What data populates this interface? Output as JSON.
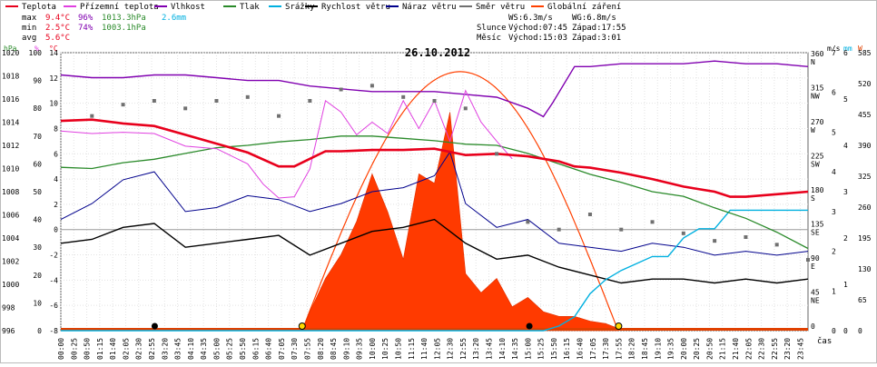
{
  "legend": [
    {
      "label": "Teplota",
      "color": "#e8001c"
    },
    {
      "label": "Přízemní teplota",
      "color": "#e040e0"
    },
    {
      "label": "Vlhkost",
      "color": "#8000b0"
    },
    {
      "label": "Tlak",
      "color": "#2a8a2a"
    },
    {
      "label": "Srážky",
      "color": "#00b0e0"
    },
    {
      "label": "Rychlost větru",
      "color": "#000000"
    },
    {
      "label": "Náraz větru",
      "color": "#00008c"
    },
    {
      "label": "Směr větru",
      "color": "#707070"
    },
    {
      "label": "Globální záření",
      "color": "#ff4000"
    }
  ],
  "stats": {
    "max_label": "max",
    "max_temp": "9.4°C",
    "max_hum": "96%",
    "max_press": "1013.3hPa",
    "max_rain": "2.6mm",
    "min_label": "min",
    "min_temp": "2.5°C",
    "min_hum": "74%",
    "min_press": "1003.1hPa",
    "avg_label": "avg",
    "avg_temp": "5.6°C"
  },
  "wind": {
    "ws": "WS:6.3m/s",
    "wg": "WG:6.8m/s"
  },
  "sun": {
    "label": "Slunce",
    "rise": "Východ:07:45",
    "set": "Západ:17:55"
  },
  "moon": {
    "label": "Měsíc",
    "rise": "Východ:15:03",
    "set": "Západ:3:01"
  },
  "date": "26.10.2012",
  "x_axis_label": "čas",
  "axis_units": {
    "hpa": "hPa",
    "pct": "%",
    "celsius": "°C",
    "ms": "m/s",
    "mm": "mm",
    "w": "W"
  },
  "chart_data": {
    "type": "line",
    "title": "26.10.2012",
    "xlabel": "čas",
    "x_ticks": [
      "00:00",
      "00:25",
      "00:50",
      "01:15",
      "01:40",
      "02:05",
      "02:30",
      "02:55",
      "03:20",
      "03:45",
      "04:10",
      "04:35",
      "05:00",
      "05:25",
      "05:50",
      "06:15",
      "06:40",
      "07:05",
      "07:30",
      "07:55",
      "08:20",
      "08:45",
      "09:10",
      "09:35",
      "10:00",
      "10:25",
      "10:50",
      "11:15",
      "11:40",
      "12:05",
      "12:30",
      "12:55",
      "13:20",
      "13:45",
      "14:10",
      "14:35",
      "15:00",
      "15:25",
      "15:50",
      "16:15",
      "16:40",
      "17:05",
      "17:30",
      "17:55",
      "18:20",
      "18:45",
      "19:10",
      "19:35",
      "20:00",
      "20:25",
      "20:50",
      "21:15",
      "21:40",
      "22:05",
      "22:30",
      "22:55",
      "23:20",
      "23:45"
    ],
    "axes": {
      "pressure_hpa": {
        "ylim": [
          996,
          1020
        ],
        "ticks": [
          "996",
          "998",
          "1000",
          "1002",
          "1004",
          "1006",
          "1008",
          "1010",
          "1012",
          "1014",
          "1016",
          "1018",
          "1020"
        ]
      },
      "humidity_pct": {
        "ylim": [
          0,
          100
        ],
        "ticks": [
          "0",
          "10",
          "20",
          "30",
          "40",
          "50",
          "60",
          "70",
          "80",
          "90",
          "100"
        ]
      },
      "temp_c": {
        "ylim": [
          -8,
          14
        ],
        "ticks": [
          "-8",
          "-6",
          "-4",
          "-2",
          "0",
          "2",
          "4",
          "6",
          "8",
          "10",
          "12",
          "14"
        ]
      },
      "wind_dir": {
        "ticks": [
          "0",
          "45",
          "90",
          "135",
          "180",
          "225",
          "270",
          "315",
          "360"
        ],
        "labels": [
          "",
          "NE",
          "E",
          "SE",
          "S",
          "SW",
          "W",
          "NW",
          "N"
        ]
      },
      "wind_ms": {
        "ylim": [
          0,
          7
        ],
        "ticks": [
          "0",
          "1",
          "2",
          "3",
          "4",
          "5",
          "6",
          "7"
        ]
      },
      "rain_mm": {
        "ylim": [
          0,
          6
        ],
        "ticks": [
          "0",
          "1",
          "2",
          "3",
          "4",
          "5",
          "6"
        ]
      },
      "radiation_w": {
        "ylim": [
          0,
          585
        ],
        "ticks": [
          "0",
          "65",
          "130",
          "195",
          "260",
          "325",
          "390",
          "455",
          "520",
          "585"
        ]
      }
    },
    "series": [
      {
        "name": "Teplota",
        "x": [
          0,
          1,
          2,
          3,
          4,
          5,
          6,
          7,
          7.5,
          8,
          8.5,
          9,
          10,
          11,
          12,
          13,
          14,
          15,
          16,
          16.5,
          17,
          18,
          19,
          20,
          21,
          21.5,
          22,
          23,
          24
        ],
        "values": [
          8.6,
          8.7,
          8.4,
          8.2,
          7.5,
          6.8,
          6.1,
          5.0,
          5.0,
          5.6,
          6.2,
          6.2,
          6.3,
          6.3,
          6.4,
          5.9,
          6.0,
          5.8,
          5.4,
          5.0,
          4.9,
          4.5,
          4.0,
          3.4,
          3.0,
          2.6,
          2.6,
          2.8,
          3.0
        ]
      },
      {
        "name": "Přízemní teplota",
        "x": [
          0,
          1,
          2,
          3,
          4,
          5,
          6,
          6.5,
          7,
          7.5,
          8,
          8.5,
          9,
          9.5,
          10,
          10.5,
          11,
          11.5,
          12,
          12.5,
          13,
          13.5,
          14,
          14.5
        ],
        "values": [
          7.8,
          7.6,
          7.7,
          7.6,
          6.6,
          6.4,
          5.2,
          3.6,
          2.5,
          2.6,
          4.8,
          10.2,
          9.3,
          7.5,
          8.5,
          7.6,
          10.2,
          8.0,
          10.2,
          7.0,
          11.0,
          8.5,
          7.0,
          5.6
        ]
      },
      {
        "name": "Vlhkost",
        "x": [
          0,
          1,
          2,
          3,
          4,
          5,
          6,
          7,
          8,
          9,
          10,
          11,
          12,
          13,
          14,
          15,
          15.5,
          15.8,
          16.5,
          17,
          18,
          19,
          20,
          21,
          22,
          23,
          24
        ],
        "values": [
          92,
          91,
          91,
          92,
          92,
          91,
          90,
          90,
          88,
          87,
          86,
          86,
          86,
          85,
          84,
          80,
          77,
          82,
          95,
          95,
          96,
          96,
          96,
          97,
          96,
          96,
          95
        ]
      },
      {
        "name": "Tlak",
        "x": [
          0,
          1,
          2,
          3,
          4,
          5,
          6,
          7,
          8,
          9,
          10,
          11,
          12,
          13,
          14,
          15,
          16,
          17,
          18,
          19,
          20,
          21,
          22,
          23,
          24
        ],
        "values": [
          1010.1,
          1010.0,
          1010.5,
          1010.8,
          1011.3,
          1011.8,
          1012.0,
          1012.3,
          1012.5,
          1012.8,
          1012.8,
          1012.6,
          1012.4,
          1012.1,
          1012.0,
          1011.3,
          1010.4,
          1009.5,
          1008.8,
          1008.0,
          1007.6,
          1006.6,
          1005.7,
          1004.5,
          1003.1
        ]
      },
      {
        "name": "Srážky",
        "x": [
          0,
          15.5,
          16,
          16.5,
          17,
          17.5,
          18,
          19,
          19.5,
          20,
          20.5,
          21,
          21.5,
          22,
          22.5,
          23,
          24
        ],
        "values": [
          0,
          0,
          0.1,
          0.3,
          0.8,
          1.1,
          1.3,
          1.6,
          1.6,
          2.0,
          2.2,
          2.2,
          2.6,
          2.6,
          2.6,
          2.6,
          2.6
        ]
      },
      {
        "name": "Rychlost větru",
        "x": [
          0,
          1,
          2,
          3,
          4,
          5,
          6,
          7,
          8,
          9,
          10,
          11,
          12,
          13,
          14,
          15,
          16,
          17,
          18,
          19,
          20,
          21,
          22,
          23,
          24
        ],
        "values": [
          2.2,
          2.3,
          2.6,
          2.7,
          2.1,
          2.2,
          2.3,
          2.4,
          1.9,
          2.2,
          2.5,
          2.6,
          2.8,
          2.2,
          1.8,
          1.9,
          1.6,
          1.4,
          1.2,
          1.3,
          1.3,
          1.2,
          1.3,
          1.2,
          1.3
        ]
      },
      {
        "name": "Náraz větru",
        "x": [
          0,
          1,
          2,
          3,
          4,
          5,
          6,
          7,
          8,
          9,
          10,
          11,
          12,
          12.5,
          13,
          14,
          15,
          16,
          17,
          18,
          19,
          20,
          21,
          22,
          23,
          24
        ],
        "values": [
          2.8,
          3.2,
          3.8,
          4.0,
          3.0,
          3.1,
          3.4,
          3.3,
          3.0,
          3.2,
          3.5,
          3.6,
          3.9,
          4.5,
          3.2,
          2.6,
          2.8,
          2.2,
          2.1,
          2.0,
          2.2,
          2.1,
          1.9,
          2.0,
          1.9,
          2.0
        ]
      },
      {
        "name": "Globální záření",
        "x": [
          7.8,
          8,
          8.5,
          9,
          9.5,
          10,
          10.5,
          11,
          11.5,
          12,
          12.5,
          13,
          13.5,
          14,
          14.5,
          15,
          15.5,
          16,
          16.5,
          17,
          17.5,
          17.9
        ],
        "values": [
          5,
          40,
          110,
          160,
          230,
          330,
          250,
          150,
          330,
          310,
          460,
          120,
          80,
          110,
          50,
          70,
          40,
          30,
          30,
          20,
          15,
          5
        ]
      }
    ],
    "clear_sky_radiation": {
      "x": [
        7.75,
        9,
        10.5,
        12.5,
        14.5,
        16,
        17.9
      ],
      "values": [
        0,
        250,
        480,
        540,
        430,
        230,
        0
      ]
    },
    "wind_direction_samples": {
      "x": [
        1,
        2,
        3,
        4,
        5,
        6,
        7,
        8,
        9,
        10,
        11,
        12,
        13,
        14,
        15,
        16,
        17,
        18,
        19,
        20,
        21,
        22,
        23,
        24
      ],
      "values": [
        280,
        295,
        300,
        290,
        300,
        305,
        280,
        300,
        315,
        320,
        305,
        300,
        290,
        230,
        140,
        130,
        150,
        130,
        140,
        125,
        115,
        120,
        110,
        90
      ]
    },
    "events": {
      "sunrise": "07:45",
      "sunset": "17:55",
      "moonrise": "15:03",
      "moonset": "3:01"
    },
    "grid": true
  }
}
